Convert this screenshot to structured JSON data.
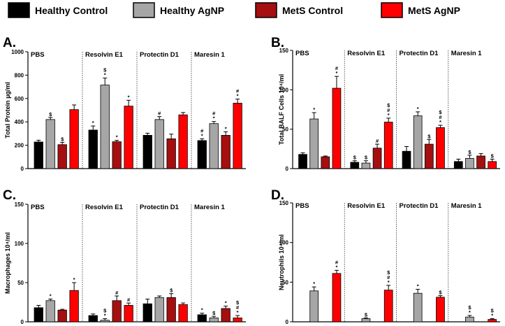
{
  "legend": {
    "items": [
      {
        "label": "Healthy Control",
        "color": "#000000"
      },
      {
        "label": "Healthy AgNP",
        "color": "#a6a6a6"
      },
      {
        "label": "MetS Control",
        "color": "#a50f0f"
      },
      {
        "label": "MetS AgNP",
        "color": "#ff0000"
      }
    ]
  },
  "chart_data": [
    {
      "panel": "A.",
      "type": "bar",
      "ylabel": "Total Protein µg/ml",
      "ylim": [
        0,
        1000
      ],
      "yticks": [
        0,
        200,
        400,
        600,
        800,
        1000
      ],
      "groups": [
        "PBS",
        "Resolvin E1",
        "Protectin D1",
        "Maresin 1"
      ],
      "series": [
        {
          "name": "Healthy Control",
          "values": [
            228,
            330,
            285,
            240
          ],
          "errors": [
            15,
            35,
            18,
            15
          ]
        },
        {
          "name": "Healthy AgNP",
          "values": [
            420,
            715,
            420,
            385
          ],
          "errors": [
            18,
            60,
            25,
            18
          ]
        },
        {
          "name": "MetS Control",
          "values": [
            205,
            230,
            255,
            285
          ],
          "errors": [
            20,
            12,
            40,
            30
          ]
        },
        {
          "name": "MetS AgNP",
          "values": [
            505,
            535,
            460,
            560
          ],
          "errors": [
            40,
            50,
            20,
            35
          ]
        }
      ],
      "annotations": [
        [
          "",
          "*",
          "",
          "#\n*"
        ],
        [
          "$",
          "$\n*",
          "#",
          "#\n*"
        ],
        [
          "$",
          "*",
          "",
          "*"
        ],
        [
          "",
          "*",
          "",
          "#\n*"
        ]
      ]
    },
    {
      "panel": "B.",
      "type": "bar",
      "ylabel": "Total BALF Cells 10⁴/ml",
      "ylim": [
        0,
        150
      ],
      "yticks": [
        0,
        50,
        100,
        150
      ],
      "groups": [
        "PBS",
        "Resolvin E1",
        "Protectin D1",
        "Maresin 1"
      ],
      "series": [
        {
          "name": "Healthy Control",
          "values": [
            18,
            8,
            22,
            9
          ],
          "errors": [
            2,
            2,
            6,
            3
          ]
        },
        {
          "name": "Healthy AgNP",
          "values": [
            63,
            7,
            67,
            13
          ],
          "errors": [
            8,
            3,
            5,
            4
          ]
        },
        {
          "name": "MetS Control",
          "values": [
            15,
            26,
            31,
            16
          ],
          "errors": [
            1,
            5,
            6,
            3
          ]
        },
        {
          "name": "MetS AgNP",
          "values": [
            102,
            59,
            52,
            9
          ],
          "errors": [
            15,
            5,
            3,
            3
          ]
        }
      ],
      "annotations": [
        [
          "",
          "$",
          "",
          ""
        ],
        [
          "*",
          "$",
          "*",
          "$"
        ],
        [
          "",
          "#",
          "$",
          ""
        ],
        [
          "#\n*",
          "$\n#\n*",
          "$\n#\n*",
          "$"
        ]
      ]
    },
    {
      "panel": "C.",
      "type": "bar",
      "ylabel": "Macrophages 10⁴/ml",
      "ylim": [
        0,
        150
      ],
      "yticks": [
        0,
        50,
        100,
        150
      ],
      "groups": [
        "PBS",
        "Resolvin E1",
        "Protectin D1",
        "Maresin 1"
      ],
      "series": [
        {
          "name": "Healthy Control",
          "values": [
            18,
            8,
            23,
            9
          ],
          "errors": [
            3,
            2,
            6,
            2
          ]
        },
        {
          "name": "Healthy AgNP",
          "values": [
            27,
            2,
            31,
            5
          ],
          "errors": [
            2,
            2,
            2,
            2
          ]
        },
        {
          "name": "MetS Control",
          "values": [
            15,
            27,
            31,
            17
          ],
          "errors": [
            1,
            6,
            5,
            3
          ]
        },
        {
          "name": "MetS AgNP",
          "values": [
            40,
            21,
            22,
            5
          ],
          "errors": [
            10,
            3,
            2,
            3
          ]
        }
      ],
      "annotations": [
        [
          "",
          "",
          "",
          "*"
        ],
        [
          "*",
          "$\n*",
          "",
          "$"
        ],
        [
          "",
          "#",
          "$",
          "*"
        ],
        [
          "*",
          "#",
          "",
          "$\n#\n*"
        ]
      ]
    },
    {
      "panel": "D.",
      "type": "bar",
      "ylabel": "Neutrophils 10⁴/ml",
      "ylim": [
        0,
        150
      ],
      "yticks": [
        0,
        50,
        100,
        150
      ],
      "groups": [
        "PBS",
        "Resolvin E1",
        "Protectin D1",
        "Maresin 1"
      ],
      "series": [
        {
          "name": "Healthy Control",
          "values": [
            0,
            0,
            0,
            0
          ],
          "errors": [
            0,
            0,
            0,
            0
          ]
        },
        {
          "name": "Healthy AgNP",
          "values": [
            39,
            4,
            36,
            6
          ],
          "errors": [
            5,
            1,
            5,
            2
          ]
        },
        {
          "name": "MetS Control",
          "values": [
            0,
            0,
            0,
            0
          ],
          "errors": [
            0,
            0,
            0,
            0
          ]
        },
        {
          "name": "MetS AgNP",
          "values": [
            61,
            40,
            31,
            3
          ],
          "errors": [
            4,
            6,
            2,
            1
          ]
        }
      ],
      "annotations": [
        [
          "",
          "",
          "",
          ""
        ],
        [
          "*",
          "$",
          "*",
          "$\n*"
        ],
        [
          "",
          "",
          "",
          ""
        ],
        [
          "#\n*",
          "$\n#\n*",
          "$",
          "$\n*"
        ]
      ]
    }
  ]
}
